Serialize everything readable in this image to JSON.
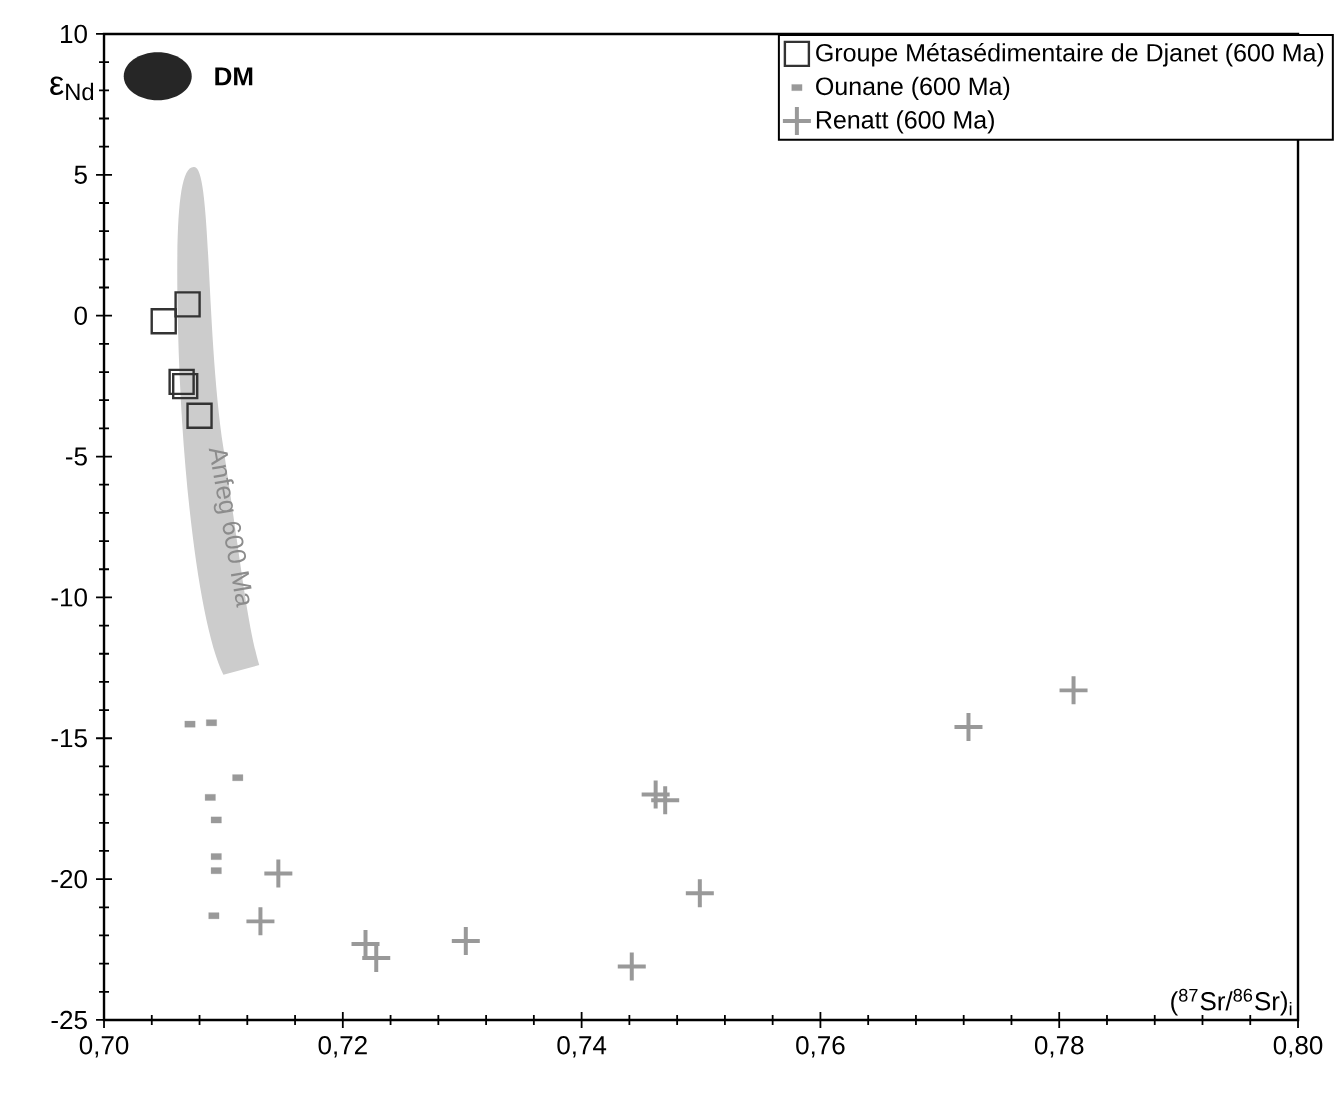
{
  "chart_data": {
    "type": "scatter",
    "xlabel": "($^{87}$Sr/$^{86}$Sr)$_{i}$",
    "ylabel": "ε$_{Nd}$",
    "xlim": [
      0.7,
      0.8
    ],
    "ylim": [
      -25,
      10
    ],
    "xticks": [
      {
        "value": 0.7,
        "label": "0,70"
      },
      {
        "value": 0.72,
        "label": "0,72"
      },
      {
        "value": 0.74,
        "label": "0,74"
      },
      {
        "value": 0.76,
        "label": "0,76"
      },
      {
        "value": 0.78,
        "label": "0,78"
      },
      {
        "value": 0.8,
        "label": "0,80"
      }
    ],
    "yticks": [
      -25,
      -20,
      -15,
      -10,
      -5,
      0,
      5,
      10
    ],
    "grid": false,
    "legend": "top right",
    "series": [
      {
        "name": "Groupe Métasédimentaire de Djanet (600 Ma)",
        "color": "#333333",
        "marker": "square",
        "x": [
          0.705,
          0.707,
          0.7065,
          0.7068,
          0.708
        ],
        "values": [
          -0.2,
          0.4,
          -2.35,
          -2.5,
          -3.55
        ]
      },
      {
        "name": "Ounane (600 Ma)",
        "color": "#999999",
        "marker": "square",
        "x": [
          0.7072,
          0.709,
          0.7112,
          0.7089,
          0.7094,
          0.7094,
          0.7094,
          0.7092
        ],
        "values": [
          -14.5,
          -14.45,
          -16.4,
          -17.1,
          -17.9,
          -19.2,
          -19.7,
          -21.3
        ]
      },
      {
        "name": "Renatt (600 Ma)",
        "color": "#999999",
        "marker": "cross",
        "x": [
          0.7146,
          0.7131,
          0.7219,
          0.7228,
          0.7303,
          0.7442,
          0.7462,
          0.747,
          0.7499,
          0.7724,
          0.7812
        ],
        "values": [
          -19.8,
          -21.5,
          -22.3,
          -22.8,
          -22.2,
          -23.1,
          -17.0,
          -17.2,
          -20.5,
          -14.6,
          -13.3
        ]
      }
    ],
    "annotations": [
      "DM",
      "Anfeg 600 Ma"
    ]
  }
}
